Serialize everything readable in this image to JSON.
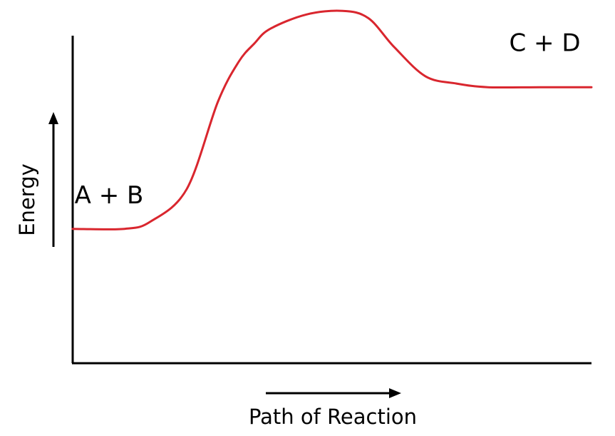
{
  "chart_data": {
    "type": "line",
    "xlabel": "Path of Reaction",
    "ylabel": "Energy",
    "ylim": [
      0,
      100
    ],
    "x": [
      0,
      10,
      15,
      22,
      28,
      32,
      35,
      38,
      45,
      52,
      57,
      62,
      68,
      74,
      80,
      90,
      100
    ],
    "series": [
      {
        "color": "#d9262e",
        "values": [
          37,
          37,
          39,
          48,
          72,
          83,
          88,
          92,
          96,
          97,
          95,
          87,
          79,
          77,
          76,
          76,
          76
        ]
      }
    ],
    "annotations": [
      {
        "text": "A + B",
        "x": 7,
        "y": 44
      },
      {
        "text": "C + D",
        "x": 91,
        "y": 86
      }
    ],
    "grid": false
  }
}
